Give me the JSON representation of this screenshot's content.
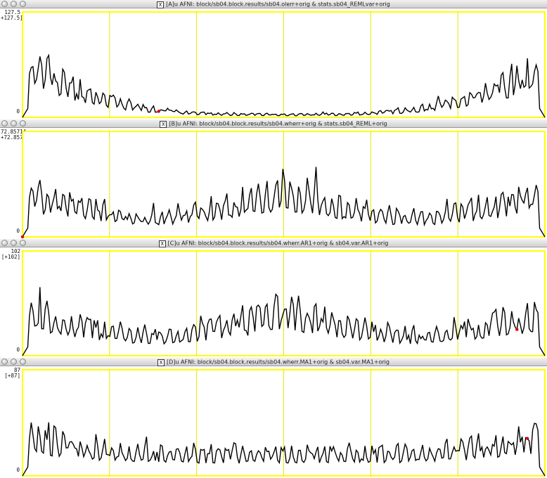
{
  "windows": [
    {
      "title": "[A]u AFNI: block/sb04.block.results/sb04.olerr+orig & stats.sb04_REMLvar+orig",
      "ymax_label": "127.5",
      "ymax_label2": "+127.5]",
      "ymin_label": "0"
    },
    {
      "title": "[B]u AFNI: block/sb04.block.results/sb04.wherr+orig & stats.sb04_REML+orig",
      "ymax_label": "72.85714",
      "ymax_label2": "+72.85714]",
      "ymin_label": "0"
    },
    {
      "title": "[C]u AFNI: block/sb04.block.results/sb04.wherr.AR1+orig & sb04.var.AR1+orig",
      "ymax_label": "102",
      "ymax_label2": "[+102]",
      "ymin_label": "0"
    },
    {
      "title": "[D]u AFNI: block/sb04.block.results/sb04.wherr.MA1+orig & sb04.var.MA1+orig",
      "ymax_label": "87",
      "ymax_label2": "[+87]",
      "ymin_label": "0"
    }
  ],
  "chart_data": [
    {
      "type": "line",
      "title": "[A]u AFNI: block/sb04.block.results/sb04.olerr+orig & stats.sb04_REMLvar+orig",
      "ylim": [
        0,
        127.5
      ],
      "x_divisions": 6,
      "envelope": "u-shape",
      "points": 300,
      "highlight_point": {
        "x_fraction": 0.26,
        "color": "#e00000"
      }
    },
    {
      "type": "line",
      "title": "[B]u AFNI: block/sb04.block.results/sb04.wherr+orig & stats.sb04_REML+orig",
      "ylim": [
        0,
        72.85714
      ],
      "x_divisions": 6,
      "envelope": "w-shape",
      "points": 300,
      "highlight_point": {
        "x_fraction": 0.0,
        "color": "#e00000"
      }
    },
    {
      "type": "line",
      "title": "[C]u AFNI: block/sb04.block.results/sb04.wherr.AR1+orig & sb04.var.AR1+orig",
      "ylim": [
        0,
        102
      ],
      "x_divisions": 6,
      "envelope": "w-shape",
      "points": 300,
      "highlight_point": {
        "x_fraction": 0.945,
        "color": "#e00000"
      }
    },
    {
      "type": "line",
      "title": "[D]u AFNI: block/sb04.block.results/sb04.wherr.MA1+orig & sb04.var.MA1+orig",
      "ylim": [
        0,
        87
      ],
      "x_divisions": 6,
      "envelope": "flat",
      "points": 300,
      "highlight_point": {
        "x_fraction": 0.965,
        "color": "#e00000"
      }
    }
  ],
  "colors": {
    "frame": "#ffff00",
    "divider": "#e8e800",
    "trace": "#000000",
    "marker": "#e00000"
  }
}
